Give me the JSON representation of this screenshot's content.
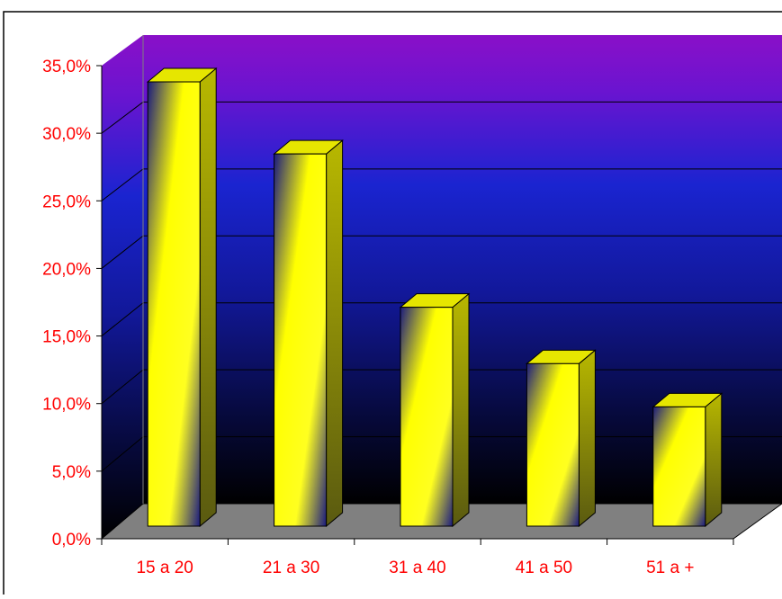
{
  "colors": {
    "bar_face": "#ffff00",
    "bar_shade": "#1a1a80",
    "bar_top": "#e6e600",
    "bar_side": "#9a9a00",
    "wall_top": "#8a10c8",
    "wall_mid": "#1a2acd",
    "wall_bottom": "#000000",
    "floor": "#808080",
    "tick_text": "#ff0000",
    "frame": "#000000"
  },
  "chart_data": {
    "type": "bar",
    "style": "3d-column",
    "categories": [
      "15 a 20",
      "21 a 30",
      "31 a 40",
      "41 a 50",
      "51 a +"
    ],
    "values": [
      33.9,
      28.4,
      16.7,
      12.4,
      9.1
    ],
    "unit": "%",
    "title": "",
    "xlabel": "",
    "ylabel": "",
    "ylim": [
      0,
      35
    ],
    "yticks": [
      "0,0%",
      "5,0%",
      "10,0%",
      "15,0%",
      "20,0%",
      "25,0%",
      "30,0%",
      "35,0%"
    ],
    "grid": true,
    "legend": "none"
  }
}
